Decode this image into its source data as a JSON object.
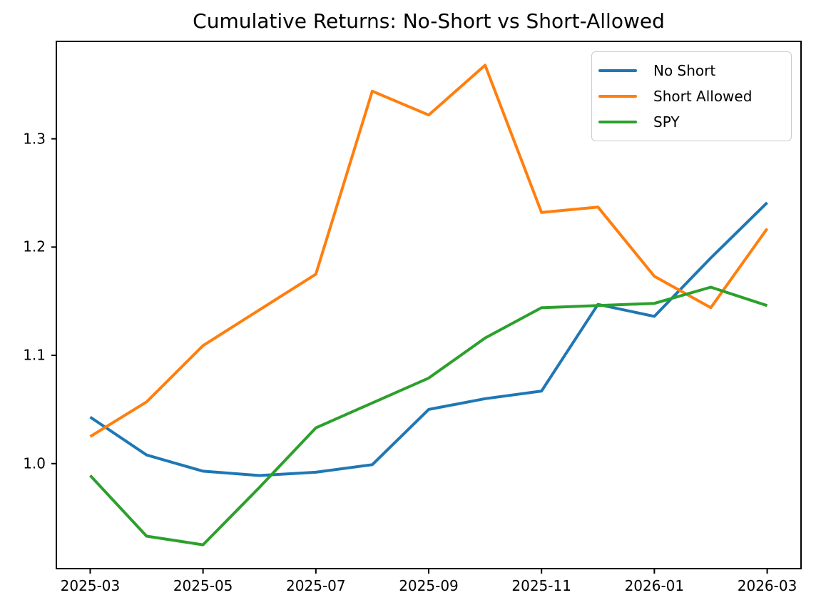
{
  "chart_data": {
    "type": "line",
    "title": "Cumulative Returns: No-Short vs Short-Allowed",
    "xlabel": "",
    "ylabel": "",
    "x": [
      "2025-03",
      "2025-04",
      "2025-05",
      "2025-06",
      "2025-07",
      "2025-08",
      "2025-09",
      "2025-10",
      "2025-11",
      "2025-12",
      "2026-01",
      "2026-02",
      "2026-03"
    ],
    "series": [
      {
        "name": "No Short",
        "color": "#1f77b4",
        "values": [
          1.043,
          1.008,
          0.993,
          0.989,
          0.992,
          0.999,
          1.05,
          1.06,
          1.067,
          1.147,
          1.136,
          1.19,
          1.241
        ]
      },
      {
        "name": "Short Allowed",
        "color": "#ff7f0e",
        "values": [
          1.025,
          1.057,
          1.109,
          1.142,
          1.175,
          1.344,
          1.322,
          1.368,
          1.232,
          1.237,
          1.173,
          1.144,
          1.217
        ]
      },
      {
        "name": "SPY",
        "color": "#2ca02c",
        "values": [
          0.989,
          0.933,
          0.925,
          0.978,
          1.033,
          1.056,
          1.079,
          1.116,
          1.144,
          1.146,
          1.148,
          1.163,
          1.146
        ]
      }
    ],
    "xtick_indices": [
      0,
      2,
      4,
      6,
      8,
      10,
      12
    ],
    "xtick_labels": [
      "2025-03",
      "2025-05",
      "2025-07",
      "2025-09",
      "2025-11",
      "2026-01",
      "2026-03"
    ],
    "ytick_values": [
      1.0,
      1.1,
      1.2,
      1.3
    ],
    "ytick_labels": [
      "1.0",
      "1.1",
      "1.2",
      "1.3"
    ],
    "xlim_index": [
      -0.6,
      12.6
    ],
    "ylim": [
      0.903,
      1.39
    ],
    "grid": false,
    "legend_position": "upper right",
    "axis_color": "#000000"
  }
}
